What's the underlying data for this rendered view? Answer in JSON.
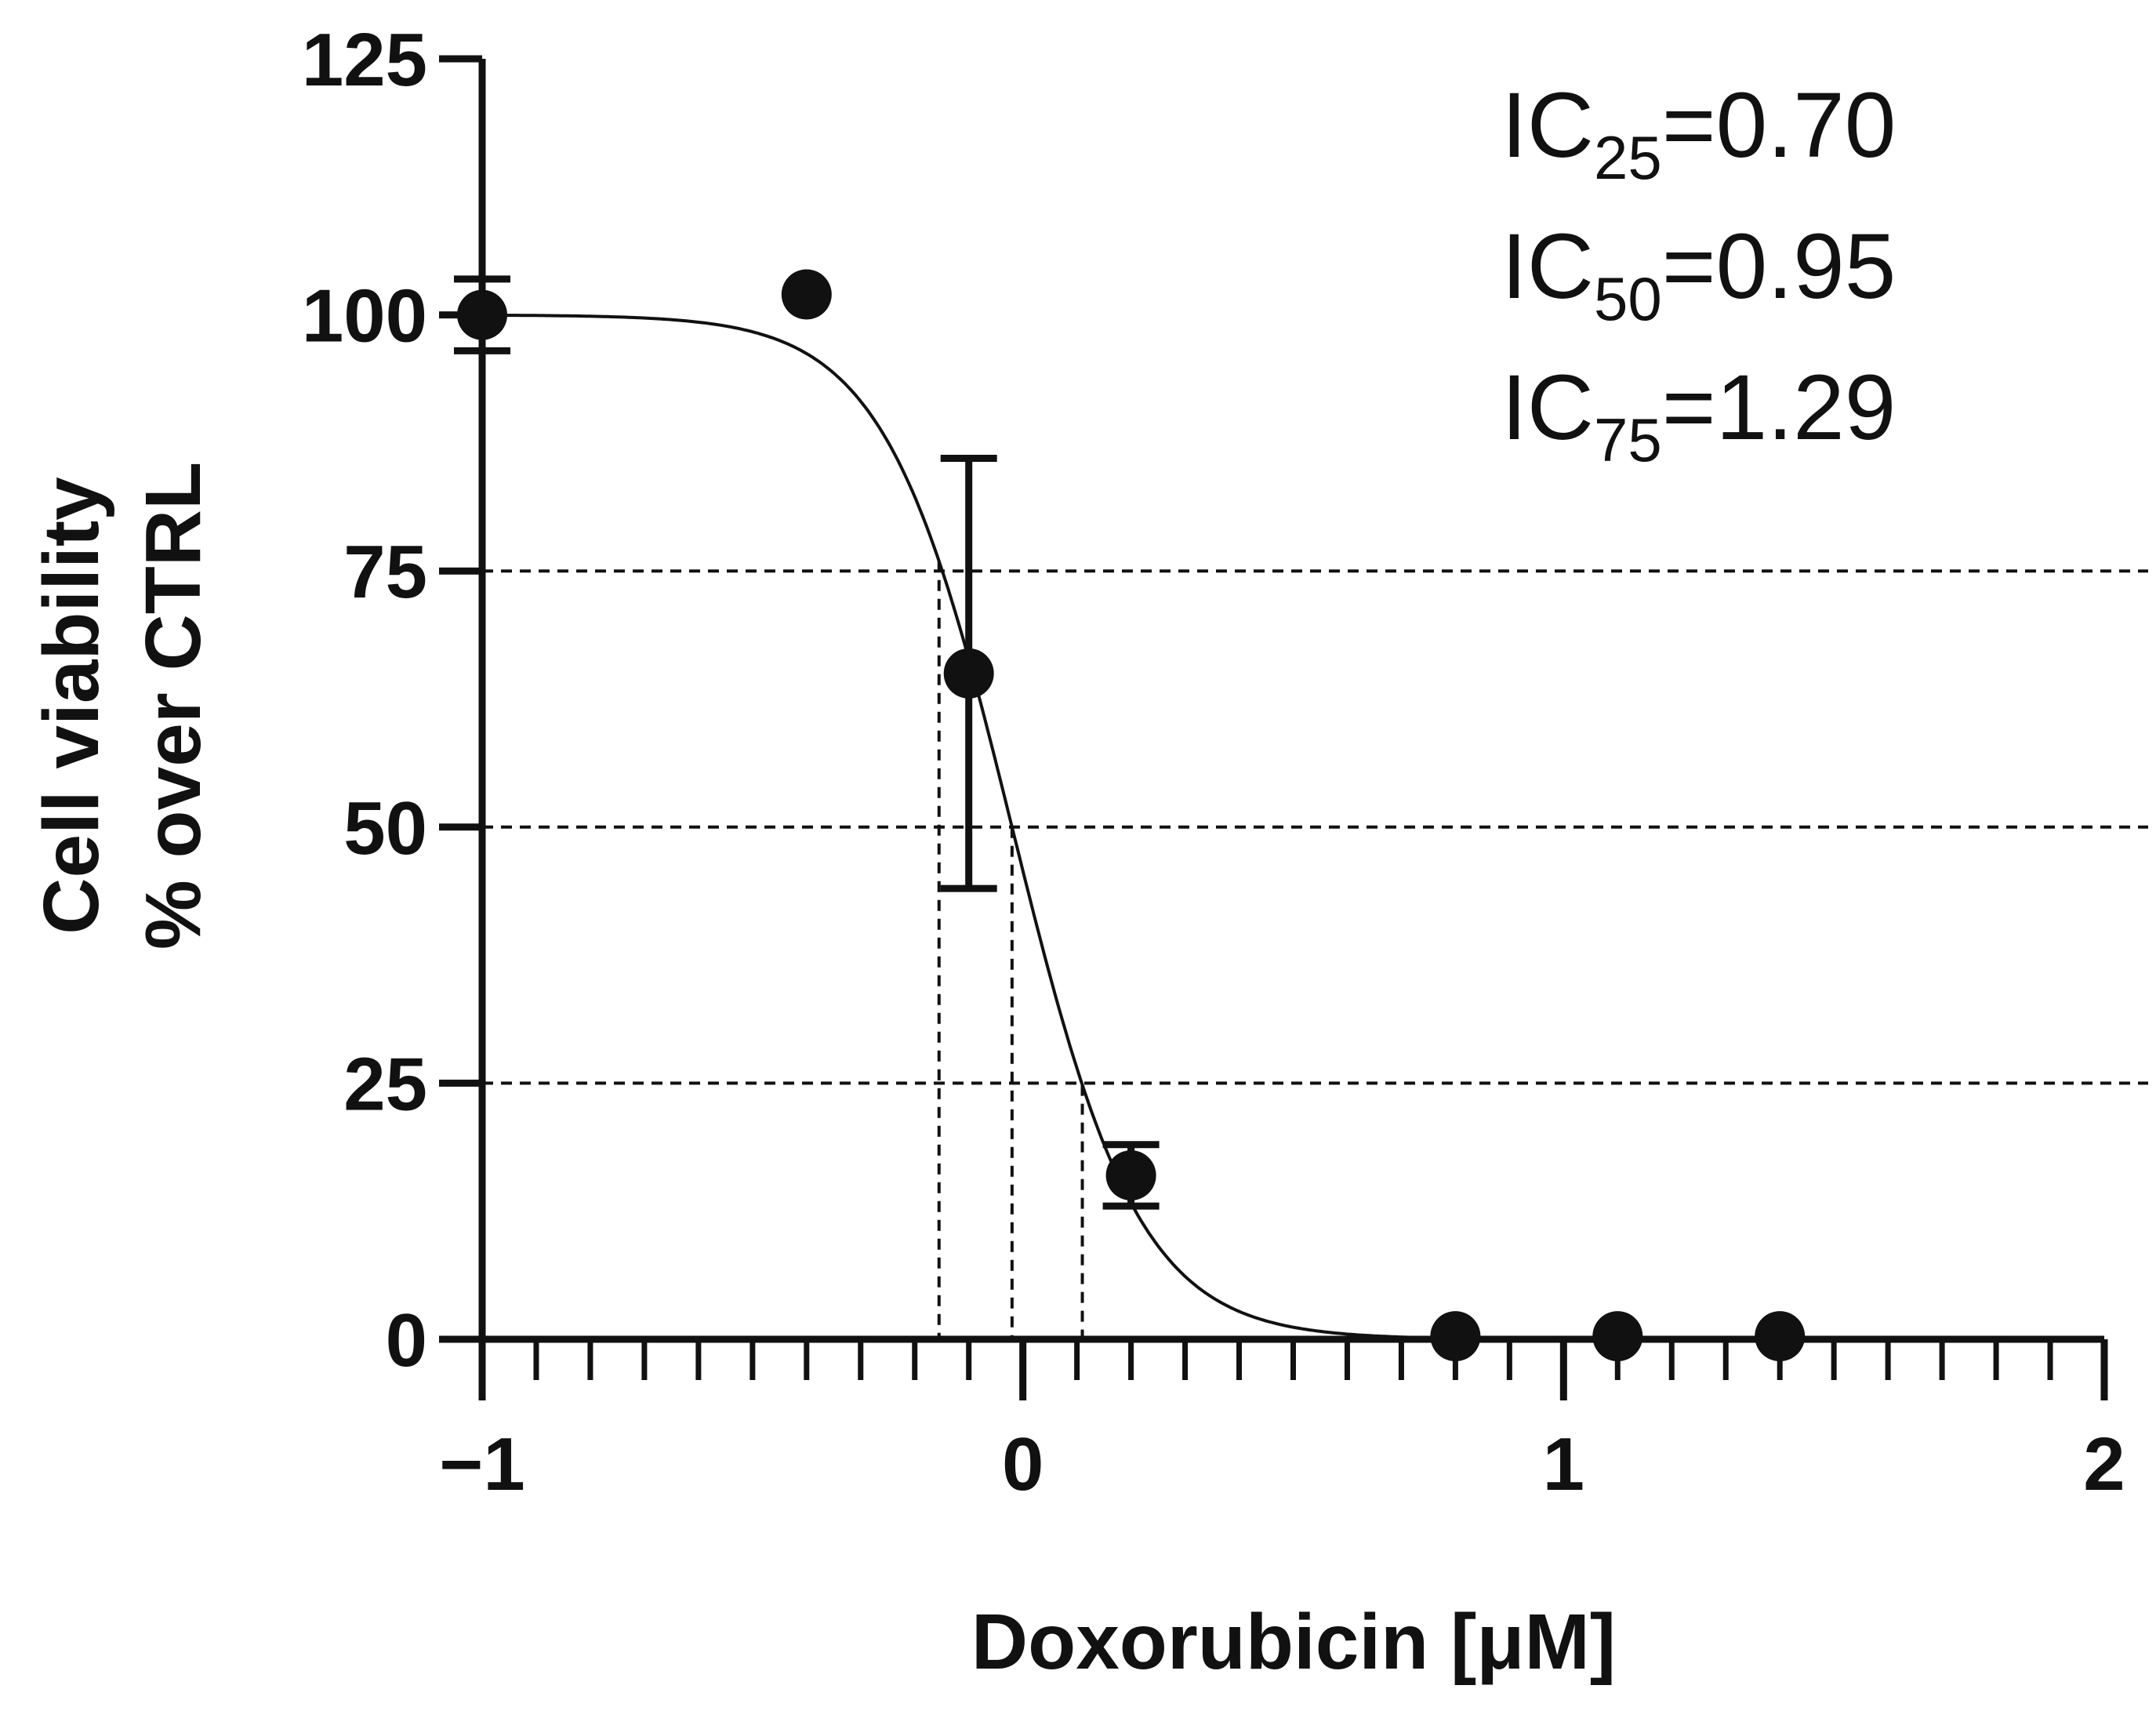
{
  "chart_data": {
    "type": "scatter",
    "xlabel": "Doxorubicin [μM]",
    "ylabel_line1": "Cell viability",
    "ylabel_line2": "% over CTRL",
    "xlim": [
      -1,
      2
    ],
    "ylim": [
      0,
      125
    ],
    "x_ticks": [
      {
        "value": -1,
        "label": "−1"
      },
      {
        "value": 0,
        "label": "0"
      },
      {
        "value": 1,
        "label": "1"
      },
      {
        "value": 2,
        "label": "2"
      }
    ],
    "x_minor_tick_step": 0.1,
    "y_ticks": [
      {
        "value": 0,
        "label": "0"
      },
      {
        "value": 25,
        "label": "25"
      },
      {
        "value": 50,
        "label": "50"
      },
      {
        "value": 75,
        "label": "75"
      },
      {
        "value": 100,
        "label": "100"
      },
      {
        "value": 125,
        "label": "125"
      }
    ],
    "points": [
      {
        "x": -1.0,
        "y": 100,
        "err": 3.5
      },
      {
        "x": -0.4,
        "y": 102,
        "err": null
      },
      {
        "x": -0.1,
        "y": 65,
        "err": 21
      },
      {
        "x": 0.2,
        "y": 16,
        "err": 3
      },
      {
        "x": 0.8,
        "y": 0.3,
        "err": null
      },
      {
        "x": 1.1,
        "y": 0.3,
        "err": null
      },
      {
        "x": 1.4,
        "y": 0.3,
        "err": null
      }
    ],
    "fit_curve": {
      "model": "sigmoid",
      "top": 100,
      "bottom": 0,
      "x50": -0.02,
      "hill": 3.7
    },
    "reference_lines_y": [
      25,
      50,
      75
    ],
    "ic_drop_lines_x": [
      -0.155,
      -0.02,
      0.11
    ],
    "annotations": [
      {
        "prefix": "IC",
        "sub": "25",
        "value": "=0.70"
      },
      {
        "prefix": "IC",
        "sub": "50",
        "value": "=0.95"
      },
      {
        "prefix": "IC",
        "sub": "75",
        "value": "=1.29"
      }
    ],
    "colors": {
      "marks": "#111111",
      "background": "#ffffff"
    }
  }
}
